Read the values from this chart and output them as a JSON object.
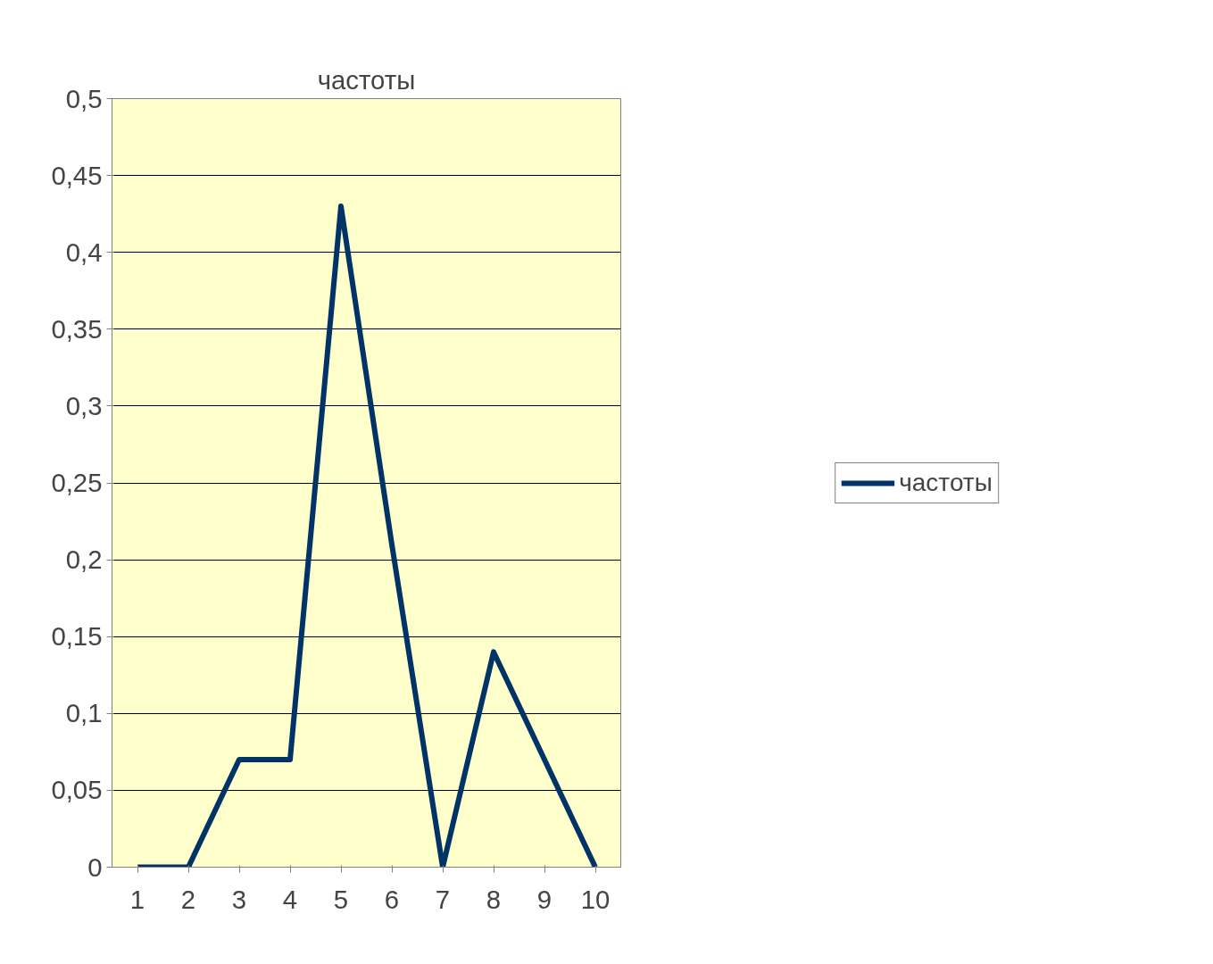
{
  "chart_data": {
    "type": "line",
    "title": "частоты",
    "categories": [
      "1",
      "2",
      "3",
      "4",
      "5",
      "6",
      "7",
      "8",
      "9",
      "10"
    ],
    "series": [
      {
        "name": "частоты",
        "color": "#003366",
        "values": [
          0,
          0,
          0.07,
          0.07,
          0.43,
          0.21,
          0,
          0.14,
          0.07,
          0
        ]
      }
    ],
    "ylim": [
      0,
      0.5
    ],
    "yticks": [
      0,
      {
        "value": 0.05,
        "label": "0,05"
      },
      {
        "value": 0.1,
        "label": "0,1"
      },
      {
        "value": 0.15,
        "label": "0,15"
      },
      {
        "value": 0.2,
        "label": "0,2"
      },
      {
        "value": 0.25,
        "label": "0,25"
      },
      {
        "value": 0.3,
        "label": "0,3"
      },
      {
        "value": 0.35,
        "label": "0,35"
      },
      {
        "value": 0.4,
        "label": "0,4"
      },
      {
        "value": 0.45,
        "label": "0,45"
      },
      {
        "value": 0.5,
        "label": "0,5"
      }
    ],
    "grid": "y",
    "legend": "right",
    "marker": "none",
    "line_style": "solid"
  }
}
